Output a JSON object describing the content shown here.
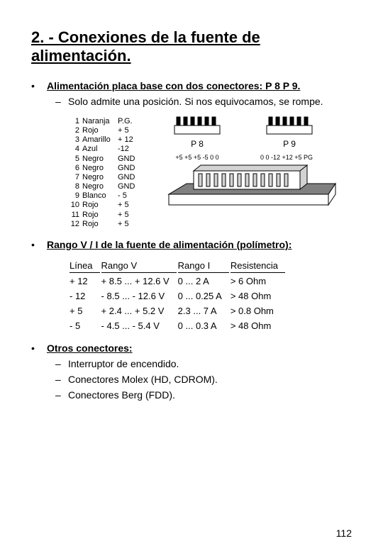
{
  "title": "2. - Conexiones de la fuente de alimentación.",
  "section1": {
    "heading": "Alimentación placa base con dos conectores: P 8 P 9.",
    "sub": "Solo admite una posición. Si nos equivocamos, se rompe."
  },
  "pins": [
    {
      "n": "1",
      "color": "Naranja",
      "v": "P.G."
    },
    {
      "n": "2",
      "color": "Rojo",
      "v": "+ 5"
    },
    {
      "n": "3",
      "color": "Amarillo",
      "v": "+ 12"
    },
    {
      "n": "4",
      "color": "Azul",
      "v": "-12"
    },
    {
      "n": "5",
      "color": "Negro",
      "v": "GND"
    },
    {
      "n": "6",
      "color": "Negro",
      "v": "GND"
    },
    {
      "n": "7",
      "color": "Negro",
      "v": "GND"
    },
    {
      "n": "8",
      "color": "Negro",
      "v": "GND"
    },
    {
      "n": "9",
      "color": "Blanco",
      "v": "- 5"
    },
    {
      "n": "10",
      "color": "Rojo",
      "v": "+ 5"
    },
    {
      "n": "11",
      "color": "Rojo",
      "v": "+ 5"
    },
    {
      "n": "12",
      "color": "Rojo",
      "v": "+ 5"
    }
  ],
  "conn": {
    "p8_label": "P 8",
    "p9_label": "P 9",
    "p8_vals": "+5 +5 +5  -5 0 0",
    "p9_vals": "0 0 -12 +12 +5 PG"
  },
  "section2": {
    "heading": "Rango V / I de la fuente de alimentación (polímetro):",
    "cols": [
      "Línea",
      "Rango V",
      "Rango I",
      "Resistencia"
    ],
    "rows": [
      [
        "+ 12",
        "+ 8.5 ... + 12.6 V",
        "0 ... 2 A",
        "> 6 Ohm"
      ],
      [
        "- 12",
        "- 8.5 ... - 12.6 V",
        "0 ... 0.25 A",
        "> 48 Ohm"
      ],
      [
        "+ 5",
        "+ 2.4 ... + 5.2 V",
        "2.3 ... 7 A",
        "> 0.8 Ohm"
      ],
      [
        "- 5",
        "- 4.5 ... - 5.4 V",
        "0 ... 0.3 A",
        "> 48 Ohm"
      ]
    ]
  },
  "section3": {
    "heading": "Otros conectores:",
    "items": [
      "Interruptor de encendido.",
      "Conectores Molex (HD, CDROM).",
      "Conectores Berg (FDD)."
    ]
  },
  "page_number": "112",
  "diagram_style": {
    "stroke": "#000000",
    "fill_dark": "#808080",
    "fill_light": "#d3d3d3"
  }
}
